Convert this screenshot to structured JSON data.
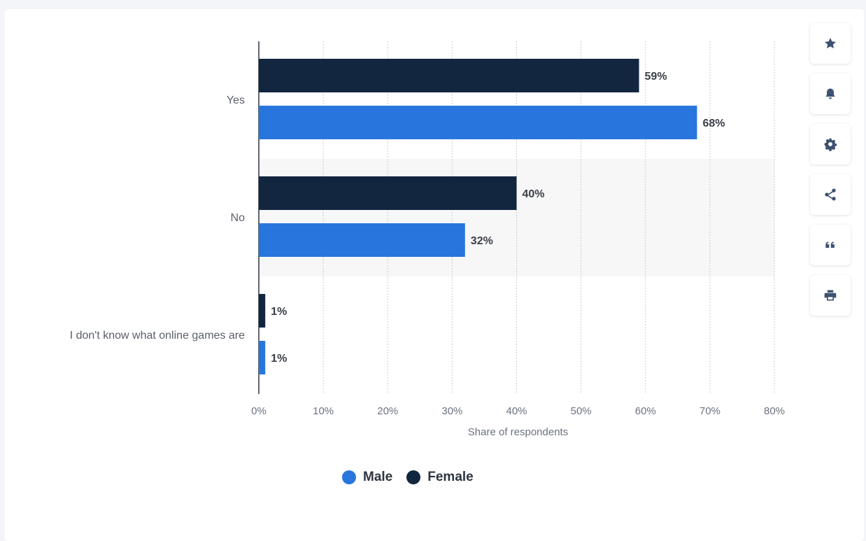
{
  "chart_data": {
    "type": "bar",
    "orientation": "horizontal",
    "categories": [
      "Yes",
      "No",
      "I don't know what online games are"
    ],
    "series": [
      {
        "name": "Female",
        "color": "#13263f",
        "values": [
          59,
          40,
          1
        ]
      },
      {
        "name": "Male",
        "color": "#2876dd",
        "values": [
          68,
          32,
          1
        ]
      }
    ],
    "value_suffix": "%",
    "xlabel": "Share of respondents",
    "xlim": [
      0,
      80
    ],
    "xticks": [
      "0%",
      "10%",
      "20%",
      "30%",
      "40%",
      "50%",
      "60%",
      "70%",
      "80%"
    ],
    "grid": true,
    "legend_position": "bottom",
    "legend": [
      {
        "label": "Male",
        "color": "#2876dd"
      },
      {
        "label": "Female",
        "color": "#13263f"
      }
    ]
  },
  "toolbar": [
    {
      "name": "star-icon"
    },
    {
      "name": "bell-icon"
    },
    {
      "name": "gear-icon"
    },
    {
      "name": "share-icon"
    },
    {
      "name": "quote-icon"
    },
    {
      "name": "print-icon"
    }
  ]
}
